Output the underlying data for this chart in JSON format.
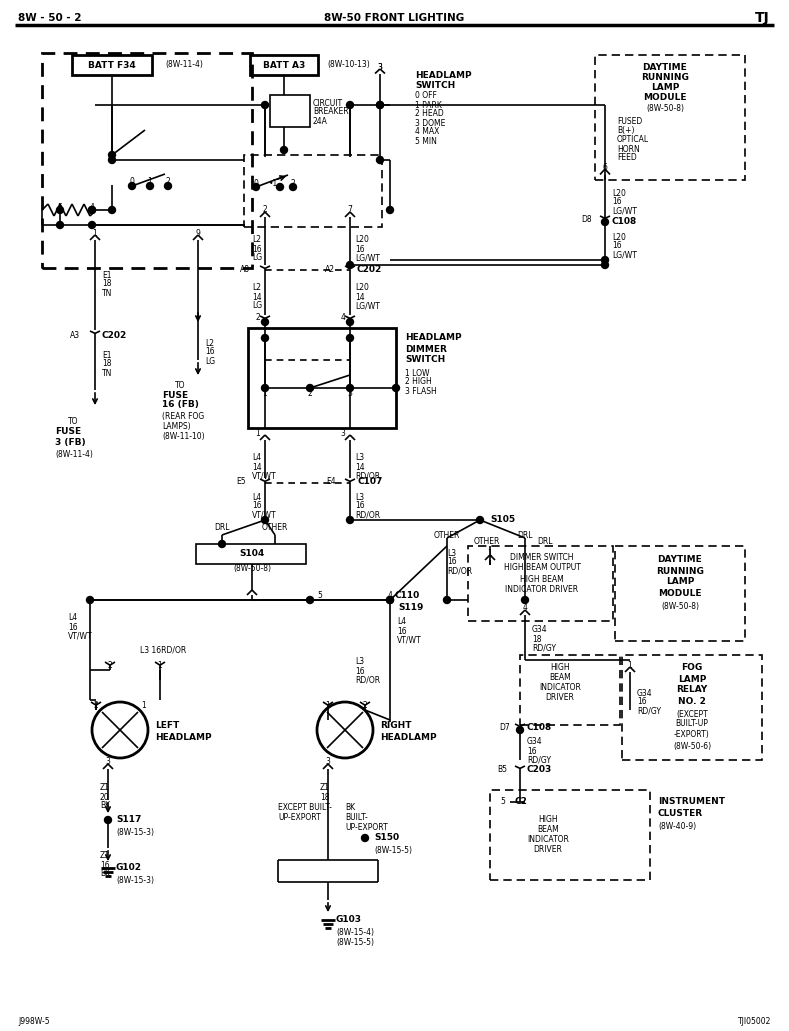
{
  "bg_color": "#ffffff",
  "line_color": "#000000",
  "title_left": "8W - 50 - 2",
  "title_center": "8W-50 FRONT LIGHTING",
  "title_right": "TJ",
  "footer_left": "J998W-5",
  "footer_right": "TJI05002"
}
